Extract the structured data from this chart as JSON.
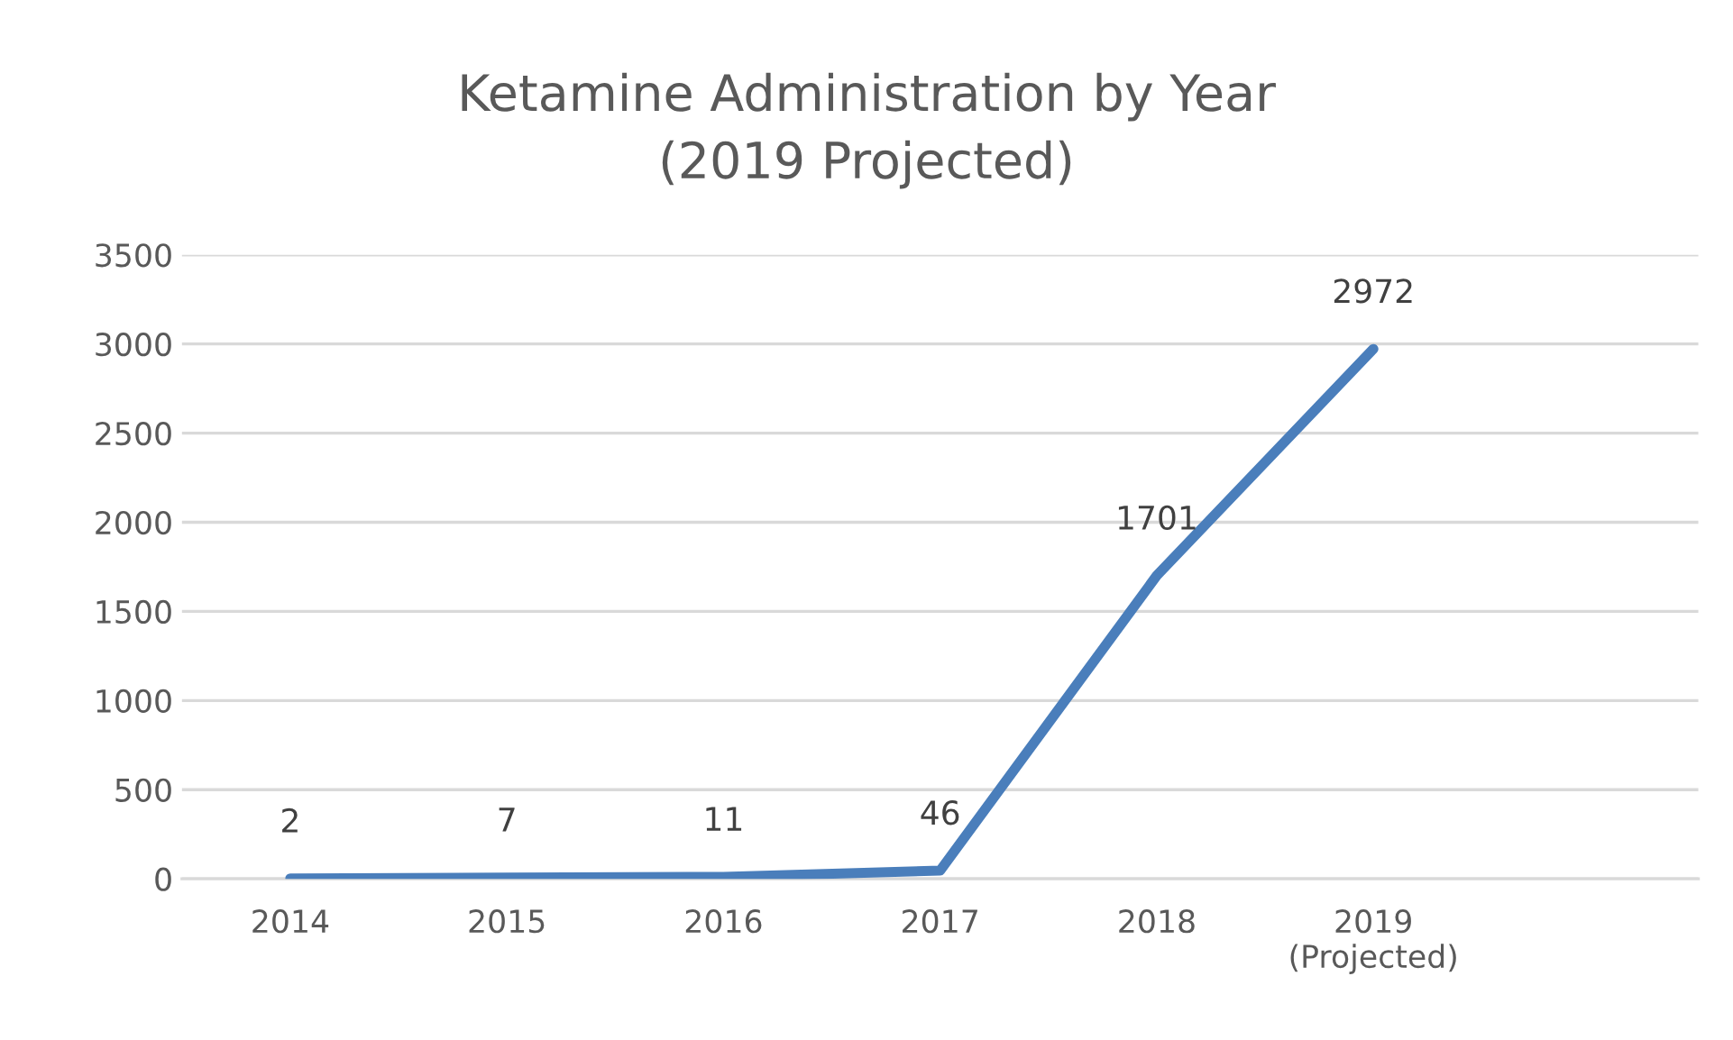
{
  "chart_data": {
    "type": "line",
    "title": "Ketamine Administration by Year\n(2019 Projected)",
    "categories": [
      "2014",
      "2015",
      "2016",
      "2017",
      "2018",
      "2019\n(Projected)",
      null
    ],
    "series": [
      {
        "color": "#4a7ebb",
        "values": [
          2,
          7,
          11,
          46,
          1701,
          2972,
          null
        ]
      }
    ],
    "ylim": [
      0,
      3500
    ],
    "yticks": [
      0,
      500,
      1000,
      1500,
      2000,
      2500,
      3000,
      3500
    ],
    "grid": "y",
    "data_labels": true,
    "marker": "none",
    "line_style": "solid"
  }
}
